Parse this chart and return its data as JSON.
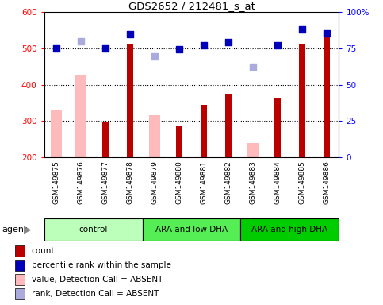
{
  "title": "GDS2652 / 212481_s_at",
  "samples": [
    "GSM149875",
    "GSM149876",
    "GSM149877",
    "GSM149878",
    "GSM149879",
    "GSM149880",
    "GSM149881",
    "GSM149882",
    "GSM149883",
    "GSM149884",
    "GSM149885",
    "GSM149886"
  ],
  "groups": [
    {
      "label": "control",
      "start": 0,
      "end": 3,
      "color": "#bbffbb"
    },
    {
      "label": "ARA and low DHA",
      "start": 4,
      "end": 7,
      "color": "#55ee55"
    },
    {
      "label": "ARA and high DHA",
      "start": 8,
      "end": 11,
      "color": "#00cc00"
    }
  ],
  "bar_red_values": [
    null,
    null,
    295,
    510,
    null,
    285,
    345,
    375,
    null,
    365,
    510,
    535
  ],
  "bar_pink_values": [
    330,
    425,
    null,
    null,
    315,
    null,
    null,
    null,
    240,
    null,
    null,
    null
  ],
  "blue_square_values": [
    500,
    null,
    500,
    540,
    null,
    497,
    508,
    518,
    null,
    508,
    552,
    542
  ],
  "light_blue_square_values": [
    null,
    520,
    null,
    null,
    478,
    null,
    null,
    null,
    450,
    null,
    null,
    null
  ],
  "ylim_left": [
    200,
    600
  ],
  "ylim_right": [
    0,
    100
  ],
  "yticks_left": [
    200,
    300,
    400,
    500,
    600
  ],
  "yticks_right": [
    0,
    25,
    50,
    75,
    100
  ],
  "ytick_right_labels": [
    "0",
    "25",
    "50",
    "75",
    "100%"
  ],
  "bar_red_color": "#bb0000",
  "bar_pink_color": "#ffbbbb",
  "blue_sq_color": "#0000bb",
  "light_blue_sq_color": "#aaaadd",
  "bg_color": "#ffffff",
  "tick_area_color": "#cccccc",
  "legend_items": [
    {
      "color": "#bb0000",
      "label": "count"
    },
    {
      "color": "#0000bb",
      "label": "percentile rank within the sample"
    },
    {
      "color": "#ffbbbb",
      "label": "value, Detection Call = ABSENT"
    },
    {
      "color": "#aaaadd",
      "label": "rank, Detection Call = ABSENT"
    }
  ]
}
